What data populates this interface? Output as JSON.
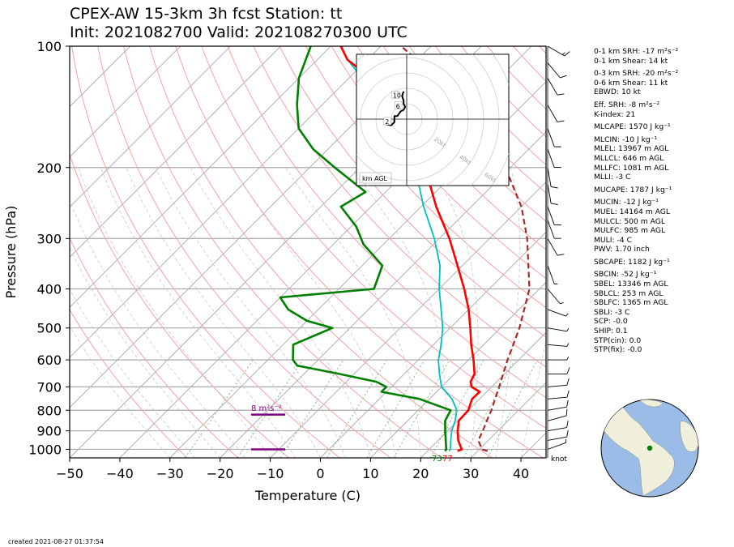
{
  "title_line1": "CPEX-AW 15-3km  3h fcst  Station: tt",
  "title_line2": "Init: 2021082700  Valid: 202108270300 UTC",
  "footer": "created 2021-08-27 01:37:54",
  "knot_label": "knot",
  "srh_label": "8 m²s⁻²",
  "sfc_labels": [
    "73",
    "77"
  ],
  "hodograph": {
    "rings": [
      "20kt",
      "40kt",
      "60kt",
      "80kt"
    ],
    "height_labels": [
      "2",
      "6",
      "10"
    ],
    "legend": "km AGL"
  },
  "parameters": [
    "0-1 km SRH: -17 m²s⁻²",
    "0-1 km Shear: 14 kt",
    "0-3 km SRH: -20 m²s⁻²",
    "0-6 km Shear: 11 kt",
    "EBWD: 10 kt",
    "Eff. SRH: -8 m²s⁻²",
    "K-index: 21",
    "MLCAPE: 1570 J kg⁻¹",
    "MLCIN: -10 J kg⁻¹",
    "MLEL: 13967 m AGL",
    "MLLCL: 646 m AGL",
    "MLLFC: 1081 m AGL",
    "MLLI: -3 C",
    "MUCAPE: 1787 J kg⁻¹",
    "MUCIN: -12 J kg⁻¹",
    "MUEL: 14164 m AGL",
    "MULCL: 500 m AGL",
    "MULFC: 985 m AGL",
    "MULI: -4 C",
    "PWV: 1.70 inch",
    "SBCAPE: 1182 J kg⁻¹",
    "SBCIN: -52 J kg⁻¹",
    "SBEL: 13346 m AGL",
    "SBLCL: 253 m AGL",
    "SBLFC: 1365 m AGL",
    "SBLI: -3 C",
    "SCP: -0.0",
    "SHIP: 0.1",
    "STP(cin): 0.0",
    "STP(fix): -0.0"
  ],
  "colors": {
    "temperature": "#ff0000",
    "dewpoint": "#008000",
    "wetbulb": "#00bfbf",
    "parcel": "#a52a2a",
    "srh_marker": "#800080",
    "dry_adiabat": "#f4a3a3",
    "moist_adiabat": "#c8c8c8",
    "mixing_ratio": "#7fbf7f",
    "ocean": "#9bbce6",
    "land": "#efefdc",
    "station_dot": "#008000"
  },
  "chart_data": {
    "type": "line",
    "xlabel": "Temperature (C)",
    "ylabel": "Pressure (hPa)",
    "xlim": [
      -50,
      45
    ],
    "ylim": [
      1050,
      100
    ],
    "y_scale": "log",
    "skew": true,
    "x_ticks": [
      -50,
      -40,
      -30,
      -20,
      -10,
      0,
      10,
      20,
      30,
      40
    ],
    "y_ticks": [
      100,
      200,
      300,
      400,
      500,
      600,
      700,
      800,
      900,
      1000
    ],
    "grid": true,
    "series": [
      {
        "key": "temperature",
        "points": [
          [
            1010,
            26
          ],
          [
            1000,
            26.5
          ],
          [
            980,
            25.5
          ],
          [
            950,
            24
          ],
          [
            900,
            22
          ],
          [
            850,
            20.2
          ],
          [
            800,
            20
          ],
          [
            750,
            18.5
          ],
          [
            720,
            18.6
          ],
          [
            700,
            16
          ],
          [
            680,
            14.8
          ],
          [
            650,
            14
          ],
          [
            600,
            11
          ],
          [
            550,
            7.5
          ],
          [
            500,
            4
          ],
          [
            450,
            0
          ],
          [
            400,
            -5
          ],
          [
            350,
            -11
          ],
          [
            300,
            -18
          ],
          [
            250,
            -27
          ],
          [
            200,
            -37
          ],
          [
            170,
            -45
          ],
          [
            150,
            -53
          ],
          [
            130,
            -62
          ],
          [
            115,
            -69
          ],
          [
            108,
            -74
          ],
          [
            100,
            -78
          ]
        ]
      },
      {
        "key": "wetbulb",
        "points": [
          [
            1010,
            24.3
          ],
          [
            1000,
            24.2
          ],
          [
            950,
            22.5
          ],
          [
            900,
            20.8
          ],
          [
            850,
            19.5
          ],
          [
            800,
            17.7
          ],
          [
            750,
            14.5
          ],
          [
            700,
            10
          ],
          [
            650,
            7
          ],
          [
            600,
            4
          ],
          [
            550,
            1.5
          ],
          [
            500,
            -1.5
          ],
          [
            450,
            -5.5
          ],
          [
            400,
            -10
          ],
          [
            350,
            -14.5
          ],
          [
            300,
            -21
          ],
          [
            250,
            -29.5
          ],
          [
            200,
            -39
          ],
          [
            170,
            -47
          ],
          [
            150,
            -54
          ],
          [
            130,
            -62.5
          ],
          [
            115,
            -70
          ],
          [
            108,
            -74
          ],
          [
            100,
            -78
          ]
        ]
      },
      {
        "key": "dewpoint",
        "points": [
          [
            1010,
            23.5
          ],
          [
            1000,
            23.4
          ],
          [
            950,
            21.5
          ],
          [
            900,
            19.5
          ],
          [
            850,
            17.5
          ],
          [
            800,
            16.5
          ],
          [
            750,
            8
          ],
          [
            720,
            -1
          ],
          [
            700,
            -1
          ],
          [
            680,
            -4
          ],
          [
            650,
            -13
          ],
          [
            620,
            -23
          ],
          [
            600,
            -25
          ],
          [
            550,
            -28
          ],
          [
            500,
            -23.5
          ],
          [
            480,
            -30
          ],
          [
            450,
            -36
          ],
          [
            420,
            -40
          ],
          [
            400,
            -23
          ],
          [
            350,
            -26
          ],
          [
            310,
            -34
          ],
          [
            280,
            -39
          ],
          [
            250,
            -46
          ],
          [
            230,
            -44
          ],
          [
            200,
            -55
          ],
          [
            180,
            -63
          ],
          [
            160,
            -70
          ],
          [
            140,
            -75
          ],
          [
            120,
            -80
          ],
          [
            100,
            -84
          ]
        ]
      },
      {
        "key": "parcel",
        "points": [
          [
            1010,
            32
          ],
          [
            1000,
            30.5
          ],
          [
            950,
            28
          ],
          [
            900,
            27
          ],
          [
            850,
            25.8
          ],
          [
            800,
            24.6
          ],
          [
            700,
            21.5
          ],
          [
            600,
            17.8
          ],
          [
            500,
            13.8
          ],
          [
            400,
            8
          ],
          [
            300,
            -2.5
          ],
          [
            250,
            -10
          ],
          [
            200,
            -21
          ],
          [
            160,
            -33
          ],
          [
            120,
            -52
          ],
          [
            100,
            -66
          ]
        ]
      }
    ],
    "srh_markers_hpa": [
      820,
      1000
    ],
    "wind_barbs": [
      [
        1000,
        8,
        70
      ],
      [
        950,
        10,
        80
      ],
      [
        900,
        12,
        80
      ],
      [
        850,
        14,
        75
      ],
      [
        800,
        12,
        80
      ],
      [
        750,
        12,
        85
      ],
      [
        700,
        10,
        85
      ],
      [
        650,
        10,
        90
      ],
      [
        600,
        8,
        90
      ],
      [
        550,
        8,
        95
      ],
      [
        500,
        6,
        100
      ],
      [
        450,
        6,
        110
      ],
      [
        400,
        5,
        140
      ],
      [
        350,
        8,
        160
      ],
      [
        300,
        12,
        150
      ],
      [
        270,
        14,
        160
      ],
      [
        250,
        14,
        160
      ],
      [
        220,
        12,
        170
      ],
      [
        200,
        10,
        170
      ],
      [
        180,
        10,
        160
      ],
      [
        160,
        12,
        160
      ],
      [
        140,
        12,
        150
      ],
      [
        120,
        10,
        150
      ],
      [
        110,
        12,
        140
      ],
      [
        100,
        15,
        120
      ]
    ],
    "hodograph_trace_kt": [
      [
        -15,
        -3
      ],
      [
        -10,
        -4
      ],
      [
        -8,
        -2
      ],
      [
        -8,
        2
      ],
      [
        -6,
        2
      ],
      [
        -4,
        5
      ],
      [
        -2,
        6
      ],
      [
        -1,
        8
      ],
      [
        -2,
        10
      ],
      [
        -2,
        12
      ],
      [
        -3,
        15
      ],
      [
        -2,
        18
      ]
    ]
  }
}
